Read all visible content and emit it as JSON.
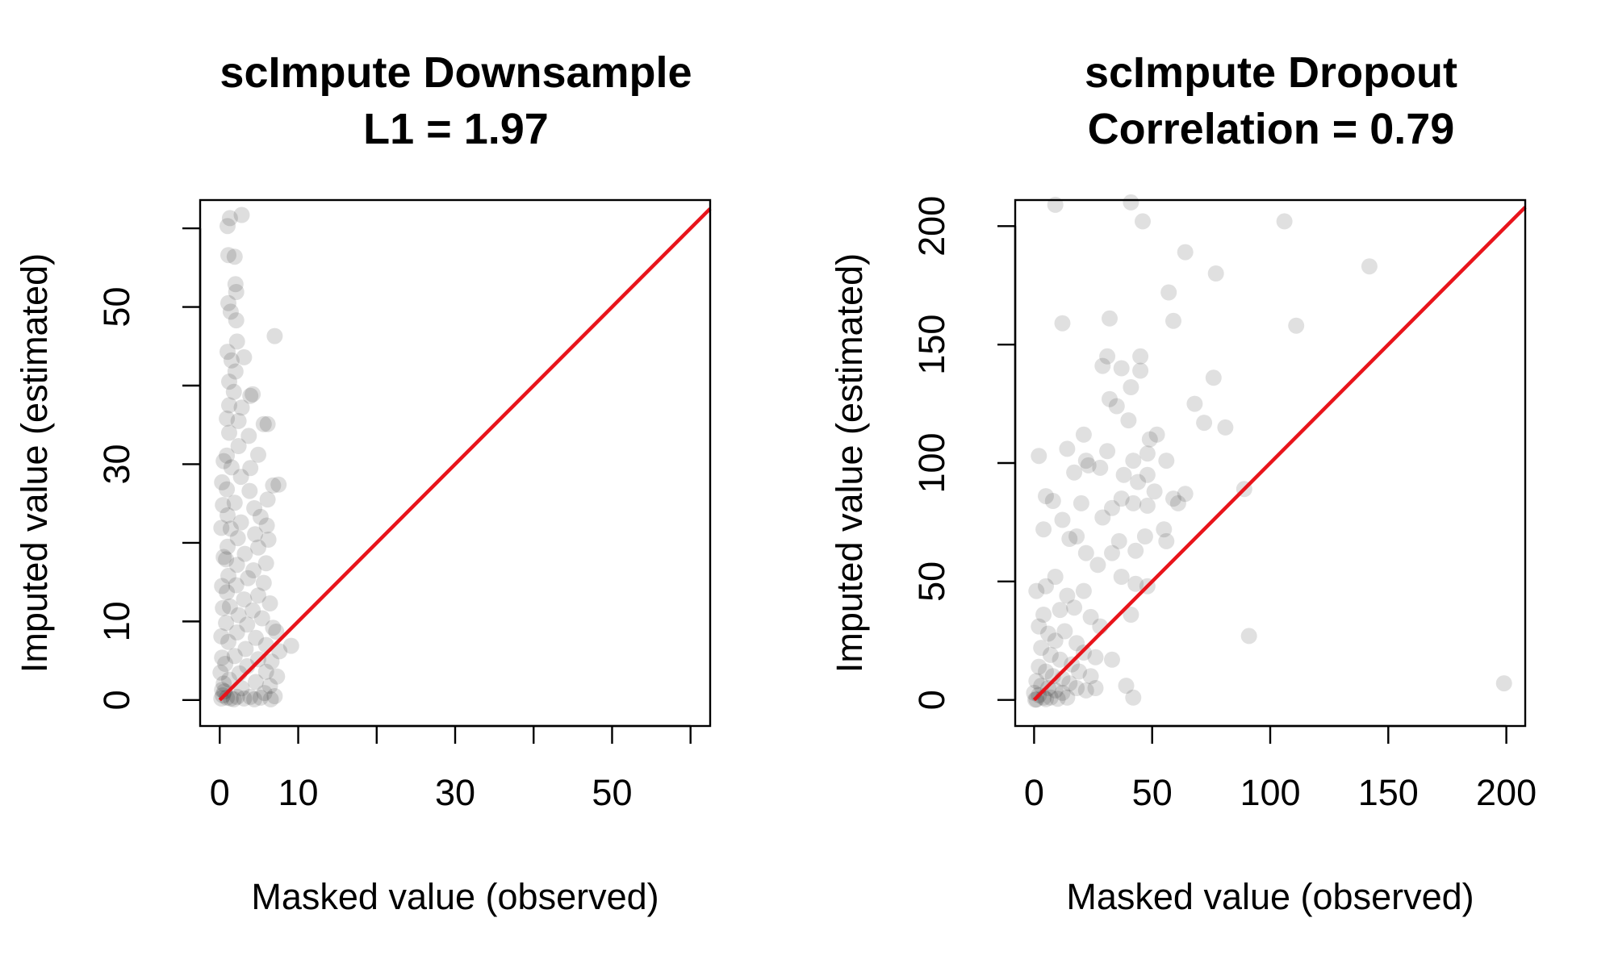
{
  "chart_data": [
    {
      "type": "scatter",
      "title": "scImpute Downsample",
      "subtitle": "L1 = 1.97",
      "xlabel": "Masked value (observed)",
      "ylabel": "Imputed value (estimated)",
      "xlim": [
        -2.5,
        62.5
      ],
      "ylim": [
        -3.3,
        63.6
      ],
      "xticks": [
        0,
        10,
        20,
        30,
        40,
        50,
        60
      ],
      "xtick_labels": [
        "0",
        "10",
        "",
        "30",
        "",
        "50",
        ""
      ],
      "yticks": [
        0,
        10,
        20,
        30,
        40,
        50,
        60
      ],
      "ytick_labels": [
        "0",
        "10",
        "",
        "30",
        "",
        "50",
        ""
      ],
      "grid": false,
      "point_color": "#000000",
      "point_opacity": 0.13,
      "reference_line": {
        "slope": 1,
        "intercept": 0,
        "color": "#e8141b"
      },
      "series": [
        {
          "values": [
            [
              1,
              60.3
            ],
            [
              1.3,
              61.3
            ],
            [
              2.8,
              61.7
            ],
            [
              1.1,
              56.6
            ],
            [
              1.9,
              56.4
            ],
            [
              2,
              52.9
            ],
            [
              2.1,
              51.9
            ],
            [
              1.1,
              50.5
            ],
            [
              1.4,
              49.4
            ],
            [
              2.1,
              48.3
            ],
            [
              2.2,
              45.6
            ],
            [
              7,
              46.3
            ],
            [
              1,
              44.3
            ],
            [
              1.5,
              43.2
            ],
            [
              3.1,
              43.6
            ],
            [
              2,
              41.8
            ],
            [
              1.2,
              40.5
            ],
            [
              1.8,
              39.2
            ],
            [
              3.9,
              38.7
            ],
            [
              4.2,
              38.9
            ],
            [
              1.2,
              37.5
            ],
            [
              2.8,
              37.2
            ],
            [
              0.9,
              35.8
            ],
            [
              2.4,
              35.5
            ],
            [
              5.6,
              35.1
            ],
            [
              6.1,
              35.1
            ],
            [
              1.2,
              34
            ],
            [
              3.7,
              33.6
            ],
            [
              2.4,
              32.3
            ],
            [
              0.9,
              31.1
            ],
            [
              4.9,
              31.2
            ],
            [
              1.5,
              29.6
            ],
            [
              3.9,
              29.5
            ],
            [
              2.7,
              28.4
            ],
            [
              6.8,
              27.3
            ],
            [
              7.5,
              27.4
            ],
            [
              0.9,
              26.8
            ],
            [
              3.8,
              26.6
            ],
            [
              6.1,
              25.5
            ],
            [
              1.9,
              25.1
            ],
            [
              4.4,
              24.4
            ],
            [
              1,
              23.5
            ],
            [
              5.2,
              23.3
            ],
            [
              2.7,
              22.6
            ],
            [
              6,
              22.2
            ],
            [
              1.4,
              21.8
            ],
            [
              4.5,
              21.1
            ],
            [
              2.3,
              20.6
            ],
            [
              6.2,
              20.4
            ],
            [
              1,
              19.5
            ],
            [
              4.9,
              19.4
            ],
            [
              3.2,
              18.6
            ],
            [
              0.8,
              17.9
            ],
            [
              5.9,
              17.4
            ],
            [
              2.2,
              17.2
            ],
            [
              4.3,
              16.5
            ],
            [
              1.1,
              15.8
            ],
            [
              3.6,
              15.5
            ],
            [
              5.6,
              14.9
            ],
            [
              2.1,
              14.6
            ],
            [
              0.9,
              13.7
            ],
            [
              4.9,
              13.3
            ],
            [
              3.1,
              12.8
            ],
            [
              6.4,
              12.3
            ],
            [
              1.3,
              11.9
            ],
            [
              4.2,
              11.4
            ],
            [
              2.4,
              10.8
            ],
            [
              5.4,
              10.4
            ],
            [
              0.8,
              9.8
            ],
            [
              3.5,
              9.6
            ],
            [
              6.8,
              9.2
            ],
            [
              7.2,
              8.7
            ],
            [
              2.2,
              8.6
            ],
            [
              4.6,
              7.9
            ],
            [
              1.1,
              7.4
            ],
            [
              5.9,
              7
            ],
            [
              9.1,
              6.9
            ],
            [
              3.3,
              6.5
            ],
            [
              7.6,
              6.2
            ],
            [
              1.9,
              5.6
            ],
            [
              4.9,
              5.2
            ],
            [
              6.6,
              4.9
            ],
            [
              0.7,
              4.6
            ],
            [
              3.5,
              4.3
            ],
            [
              5.9,
              3.6
            ],
            [
              2.5,
              3.4
            ],
            [
              7.3,
              3
            ],
            [
              1.2,
              2.6
            ],
            [
              4.6,
              2.3
            ],
            [
              6.4,
              1.8
            ],
            [
              2.8,
              1.5
            ],
            [
              0.6,
              1.1
            ],
            [
              5.7,
              0.9
            ],
            [
              7,
              0.5
            ],
            [
              3.9,
              0.4
            ],
            [
              1.8,
              0.1
            ],
            [
              6.5,
              0.1
            ],
            [
              0.2,
              0.2
            ],
            [
              0.4,
              0.6
            ],
            [
              0.3,
              1.3
            ],
            [
              0.5,
              2.1
            ],
            [
              0.9,
              0.3
            ],
            [
              1.4,
              0.2
            ],
            [
              2.2,
              0.4
            ],
            [
              3.1,
              0.2
            ],
            [
              4.4,
              0.1
            ],
            [
              5.2,
              0.3
            ],
            [
              0.1,
              3.5
            ],
            [
              0.3,
              5.4
            ],
            [
              0.2,
              8.1
            ],
            [
              0.4,
              11.7
            ],
            [
              0.3,
              14.5
            ],
            [
              0.5,
              18.2
            ],
            [
              0.2,
              21.9
            ],
            [
              0.4,
              24.8
            ],
            [
              0.3,
              27.7
            ],
            [
              0.5,
              30.4
            ]
          ]
        }
      ]
    },
    {
      "type": "scatter",
      "title": "scImpute Dropout",
      "subtitle": "Correlation = 0.79",
      "xlabel": "Masked value (observed)",
      "ylabel": "Imputed value (estimated)",
      "xlim": [
        -8,
        208
      ],
      "ylim": [
        -11,
        211
      ],
      "xticks": [
        0,
        50,
        100,
        150,
        200
      ],
      "xtick_labels": [
        "0",
        "50",
        "100",
        "150",
        "200"
      ],
      "yticks": [
        0,
        50,
        100,
        150,
        200
      ],
      "ytick_labels": [
        "0",
        "50",
        "100",
        "150",
        "200"
      ],
      "grid": false,
      "point_color": "#000000",
      "point_opacity": 0.12,
      "reference_line": {
        "slope": 1,
        "intercept": 0,
        "color": "#e8141b"
      },
      "series": [
        {
          "values": [
            [
              9,
              209
            ],
            [
              41,
              210
            ],
            [
              46,
              202
            ],
            [
              64,
              189
            ],
            [
              57,
              172
            ],
            [
              59,
              160
            ],
            [
              77,
              180
            ],
            [
              106,
              202
            ],
            [
              142,
              183
            ],
            [
              111,
              158
            ],
            [
              12,
              159
            ],
            [
              32,
              161
            ],
            [
              31,
              145
            ],
            [
              37,
              140
            ],
            [
              29,
              141
            ],
            [
              45,
              145
            ],
            [
              45,
              139
            ],
            [
              32,
              127
            ],
            [
              35,
              124
            ],
            [
              41,
              132
            ],
            [
              76,
              136
            ],
            [
              68,
              125
            ],
            [
              72,
              117
            ],
            [
              81,
              115
            ],
            [
              40,
              118
            ],
            [
              2,
              103
            ],
            [
              14,
              106
            ],
            [
              21,
              112
            ],
            [
              22,
              101
            ],
            [
              17,
              96
            ],
            [
              23,
              99
            ],
            [
              28,
              98
            ],
            [
              31,
              105
            ],
            [
              38,
              95
            ],
            [
              42,
              101
            ],
            [
              44,
              92
            ],
            [
              48,
              95
            ],
            [
              48,
              104
            ],
            [
              49,
              110
            ],
            [
              52,
              112
            ],
            [
              56,
              101
            ],
            [
              59,
              85
            ],
            [
              61,
              83
            ],
            [
              64,
              87
            ],
            [
              51,
              88
            ],
            [
              48,
              82
            ],
            [
              42,
              83
            ],
            [
              37,
              85
            ],
            [
              33,
              81
            ],
            [
              29,
              77
            ],
            [
              20,
              83
            ],
            [
              12,
              76
            ],
            [
              8,
              84
            ],
            [
              5,
              86
            ],
            [
              4,
              72
            ],
            [
              15,
              68
            ],
            [
              18,
              69
            ],
            [
              22,
              62
            ],
            [
              27,
              57
            ],
            [
              33,
              62
            ],
            [
              36,
              67
            ],
            [
              43,
              63
            ],
            [
              47,
              69
            ],
            [
              55,
              72
            ],
            [
              56,
              67
            ],
            [
              37,
              52
            ],
            [
              43,
              49
            ],
            [
              48,
              48
            ],
            [
              41,
              36
            ],
            [
              39,
              6
            ],
            [
              42,
              1
            ],
            [
              33,
              17
            ],
            [
              26,
              5
            ],
            [
              91,
              27
            ],
            [
              89,
              89
            ],
            [
              199,
              7
            ],
            [
              1,
              46
            ],
            [
              5,
              48
            ],
            [
              9,
              52
            ],
            [
              14,
              44
            ],
            [
              17,
              39
            ],
            [
              21,
              46
            ],
            [
              24,
              35
            ],
            [
              28,
              31
            ],
            [
              11,
              38
            ],
            [
              4,
              36
            ],
            [
              2,
              31
            ],
            [
              6,
              28
            ],
            [
              9,
              25
            ],
            [
              13,
              29
            ],
            [
              18,
              24
            ],
            [
              21,
              20
            ],
            [
              26,
              18
            ],
            [
              3,
              22
            ],
            [
              7,
              19
            ],
            [
              11,
              17
            ],
            [
              16,
              15
            ],
            [
              19,
              12
            ],
            [
              24,
              10
            ],
            [
              2,
              14
            ],
            [
              5,
              12
            ],
            [
              8,
              10
            ],
            [
              12,
              9
            ],
            [
              15,
              7
            ],
            [
              18,
              5
            ],
            [
              22,
              4
            ],
            [
              1,
              8
            ],
            [
              3,
              6
            ],
            [
              6,
              5
            ],
            [
              9,
              4
            ],
            [
              12,
              3
            ],
            [
              0,
              3
            ],
            [
              2,
              2
            ],
            [
              4,
              1
            ],
            [
              7,
              1
            ],
            [
              10,
              0.5
            ],
            [
              14,
              1
            ],
            [
              1,
              0.2
            ],
            [
              5,
              0.3
            ],
            [
              0.5,
              0.1
            ]
          ]
        }
      ]
    }
  ]
}
